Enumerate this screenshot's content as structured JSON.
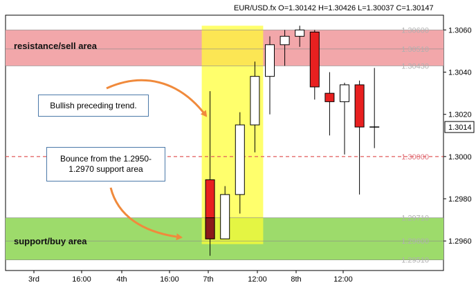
{
  "header": {
    "info": "EUR/USD.fx O=1.30142 H=1.30426 L=1.30037 C=1.30147"
  },
  "zones": [
    {
      "name": "resistance/sell area",
      "top": 1.306,
      "bottom": 1.3043,
      "color": "#f2a7aa"
    },
    {
      "name": "support/buy area",
      "top": 1.2971,
      "bottom": 1.2951,
      "color": "#9ddb6b"
    }
  ],
  "annotations": {
    "trend": "Bullish preceding trend.",
    "bounce": "Bounce from the 1.2950-1.2970 support area"
  },
  "colors": {
    "bull": "#ffffff",
    "bear": "#e82020",
    "highlight": "#ffff33",
    "dashed": "#e05a5a",
    "arrow": "#f08a3c"
  },
  "chart_data": {
    "type": "candlestick",
    "title": "EUR/USD.fx",
    "ylim": [
      1.2946,
      1.3067
    ],
    "yticks": [
      "1.3060",
      "1.3040",
      "1.3020",
      "1.3000",
      "1.2980",
      "1.2960"
    ],
    "current_price": "1.3014",
    "level_labels": [
      {
        "value": 1.306,
        "label": "1.30600"
      },
      {
        "value": 1.3051,
        "label": "1.30510"
      },
      {
        "value": 1.3043,
        "label": "1.30430"
      },
      {
        "value": 1.3,
        "label": "1.30000"
      },
      {
        "value": 1.2971,
        "label": "1.29710"
      },
      {
        "value": 1.296,
        "label": "1.29600"
      },
      {
        "value": 1.2951,
        "label": "1.29510"
      }
    ],
    "dashed_level": 1.3,
    "xticks": [
      "3rd",
      "16:00",
      "4th",
      "16:00",
      "7th",
      "12:00",
      "8th",
      "12:00"
    ],
    "candles": [
      {
        "open": 1.2989,
        "high": 1.3031,
        "low": 1.2953,
        "close": 1.2961
      },
      {
        "open": 1.2961,
        "high": 1.2986,
        "low": 1.2961,
        "close": 1.2982
      },
      {
        "open": 1.2982,
        "high": 1.3021,
        "low": 1.2973,
        "close": 1.3015
      },
      {
        "open": 1.3015,
        "high": 1.3045,
        "low": 1.3002,
        "close": 1.3038
      },
      {
        "open": 1.3038,
        "high": 1.3057,
        "low": 1.302,
        "close": 1.3053
      },
      {
        "open": 1.3053,
        "high": 1.306,
        "low": 1.3043,
        "close": 1.3057
      },
      {
        "open": 1.3057,
        "high": 1.3062,
        "low": 1.3052,
        "close": 1.306
      },
      {
        "open": 1.3059,
        "high": 1.306,
        "low": 1.3027,
        "close": 1.3033
      },
      {
        "open": 1.303,
        "high": 1.304,
        "low": 1.301,
        "close": 1.3026
      },
      {
        "open": 1.3026,
        "high": 1.3035,
        "low": 1.3001,
        "close": 1.3034
      },
      {
        "open": 1.3034,
        "high": 1.3036,
        "low": 1.2982,
        "close": 1.3014
      },
      {
        "open": 1.3014,
        "high": 1.3042,
        "low": 1.3004,
        "close": 1.3014
      }
    ]
  }
}
